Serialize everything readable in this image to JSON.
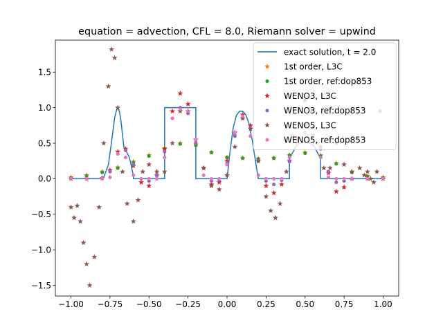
{
  "chart_data": {
    "type": "scatter",
    "title": "equation = advection, CFL = 8.0, Riemann solver = upwind",
    "xlabel": "",
    "ylabel": "",
    "xlim": [
      -1.1,
      1.1
    ],
    "ylim": [
      -1.65,
      1.95
    ],
    "xticks": [
      -1.0,
      -0.75,
      -0.5,
      -0.25,
      0.0,
      0.25,
      0.5,
      0.75,
      1.0
    ],
    "xtick_labels": [
      "−1.00",
      "−0.75",
      "−0.50",
      "−0.25",
      "0.00",
      "0.25",
      "0.50",
      "0.75",
      "1.00"
    ],
    "yticks": [
      -1.5,
      -1.0,
      -0.5,
      0.0,
      0.5,
      1.0,
      1.5
    ],
    "ytick_labels": [
      "−1.5",
      "−1.0",
      "−0.5",
      "0.0",
      "0.5",
      "1.0",
      "1.5"
    ],
    "grid": false,
    "legend_position": "top-right",
    "series": [
      {
        "name": "exact solution, t = 2.0",
        "color": "#1f77b4",
        "marker": "line",
        "x": [
          -1.0,
          -0.82,
          -0.79,
          -0.76,
          -0.74,
          -0.72,
          -0.71,
          -0.7,
          -0.69,
          -0.68,
          -0.67,
          -0.66,
          -0.65,
          -0.64,
          -0.63,
          -0.62,
          -0.61,
          -0.6,
          -0.6,
          -0.6,
          -0.4,
          -0.4,
          -0.4,
          -0.2,
          -0.2,
          -0.2,
          0.0,
          0.02,
          0.04,
          0.06,
          0.08,
          0.1,
          0.12,
          0.14,
          0.16,
          0.18,
          0.2,
          0.2,
          0.4,
          0.4,
          0.44,
          0.48,
          0.52,
          0.56,
          0.6,
          0.6,
          0.8,
          1.0
        ],
        "y": [
          0.0,
          0.0,
          0.02,
          0.2,
          0.52,
          0.86,
          0.95,
          1.0,
          0.95,
          0.82,
          0.62,
          0.43,
          0.4,
          0.36,
          0.32,
          0.25,
          0.14,
          0.05,
          0.0,
          0.0,
          0.0,
          1.0,
          1.0,
          1.0,
          0.0,
          0.0,
          0.0,
          0.4,
          0.72,
          0.89,
          0.95,
          0.95,
          0.9,
          0.78,
          0.56,
          0.28,
          0.0,
          0.0,
          0.0,
          0.28,
          0.45,
          0.52,
          0.52,
          0.45,
          0.28,
          0.0,
          0.0,
          0.0
        ]
      },
      {
        "name": "1st order, L3C",
        "color": "#ff7f0e",
        "marker": "star",
        "x": [
          -1.0,
          -0.9,
          -0.8,
          -0.7,
          -0.6,
          -0.5,
          -0.4,
          -0.3,
          -0.2,
          -0.1,
          0.0,
          0.1,
          0.2,
          0.3,
          0.4,
          0.5,
          0.6,
          0.7,
          0.8,
          0.9,
          1.0
        ],
        "y": [
          0.02,
          0.05,
          0.1,
          0.16,
          0.24,
          0.33,
          0.43,
          0.5,
          0.48,
          0.37,
          0.3,
          0.29,
          0.28,
          0.29,
          0.33,
          0.37,
          0.33,
          0.22,
          0.1,
          0.04,
          0.02
        ]
      },
      {
        "name": "1st order, ref:dop853",
        "color": "#2ca02c",
        "marker": "dot",
        "x": [
          -1.0,
          -0.9,
          -0.8,
          -0.7,
          -0.6,
          -0.5,
          -0.4,
          -0.3,
          -0.2,
          -0.1,
          0.0,
          0.1,
          0.2,
          0.3,
          0.4,
          0.5,
          0.6,
          0.7,
          0.8,
          0.9,
          1.0
        ],
        "y": [
          0.01,
          0.04,
          0.09,
          0.15,
          0.23,
          0.32,
          0.42,
          0.49,
          0.47,
          0.37,
          0.3,
          0.29,
          0.28,
          0.29,
          0.33,
          0.36,
          0.32,
          0.21,
          0.09,
          0.03,
          0.01
        ]
      },
      {
        "name": "WENO3, L3C",
        "color": "#d62728",
        "marker": "star",
        "x": [
          -1.0,
          -0.9,
          -0.8,
          -0.75,
          -0.7,
          -0.65,
          -0.6,
          -0.55,
          -0.5,
          -0.45,
          -0.4,
          -0.35,
          -0.3,
          -0.25,
          -0.2,
          -0.15,
          -0.1,
          -0.05,
          0.0,
          0.05,
          0.1,
          0.15,
          0.2,
          0.25,
          0.3,
          0.35,
          0.4,
          0.45,
          0.5,
          0.55,
          0.6,
          0.65,
          0.7,
          0.75,
          0.8,
          0.9,
          1.0
        ],
        "y": [
          0.0,
          0.0,
          0.01,
          0.12,
          0.38,
          0.42,
          0.18,
          -0.05,
          -0.1,
          0.05,
          0.42,
          0.95,
          1.2,
          1.05,
          0.55,
          0.15,
          -0.08,
          -0.05,
          0.25,
          0.65,
          0.9,
          0.75,
          0.25,
          -0.1,
          -0.2,
          -0.08,
          0.25,
          0.55,
          0.75,
          0.72,
          0.45,
          0.08,
          -0.18,
          -0.12,
          0.0,
          0.0,
          0.0
        ]
      },
      {
        "name": "WENO3, ref:dop853",
        "color": "#9467bd",
        "marker": "dot",
        "x": [
          -1.0,
          -0.9,
          -0.8,
          -0.75,
          -0.7,
          -0.65,
          -0.6,
          -0.55,
          -0.5,
          -0.45,
          -0.4,
          -0.35,
          -0.3,
          -0.25,
          -0.2,
          -0.15,
          -0.1,
          -0.05,
          0.0,
          0.05,
          0.1,
          0.15,
          0.2,
          0.25,
          0.3,
          0.35,
          0.4,
          0.45,
          0.5,
          0.55,
          0.6,
          0.65,
          0.7,
          0.75,
          0.8,
          0.9,
          1.0
        ],
        "y": [
          0.0,
          0.0,
          0.01,
          0.1,
          0.35,
          0.4,
          0.2,
          0.0,
          -0.03,
          0.05,
          0.38,
          0.85,
          1.0,
          0.92,
          0.5,
          0.15,
          -0.03,
          -0.02,
          0.22,
          0.6,
          0.85,
          0.72,
          0.25,
          -0.03,
          -0.08,
          -0.02,
          0.25,
          0.5,
          0.65,
          0.62,
          0.42,
          0.1,
          -0.05,
          -0.03,
          0.0,
          0.0,
          0.0
        ]
      },
      {
        "name": "WENO5, L3C",
        "color": "#8c564b",
        "marker": "star",
        "x": [
          -1.0,
          -0.98,
          -0.96,
          -0.94,
          -0.92,
          -0.9,
          -0.88,
          -0.85,
          -0.82,
          -0.79,
          -0.76,
          -0.74,
          -0.72,
          -0.7,
          -0.67,
          -0.64,
          -0.6,
          -0.57,
          -0.54,
          -0.5,
          -0.45,
          -0.4,
          -0.35,
          -0.3,
          -0.25,
          -0.2,
          -0.15,
          -0.1,
          -0.05,
          0.0,
          0.05,
          0.1,
          0.15,
          0.2,
          0.25,
          0.28,
          0.31,
          0.34,
          0.38,
          0.42,
          0.46,
          0.5,
          0.54,
          0.58,
          0.62,
          0.66,
          0.7,
          0.75,
          0.8,
          0.85,
          0.88,
          0.9,
          0.92,
          0.94,
          0.96,
          0.98,
          1.0
        ],
        "y": [
          -0.4,
          -0.55,
          -0.38,
          -0.6,
          -0.9,
          -1.2,
          -1.5,
          -1.1,
          -0.4,
          0.5,
          1.3,
          1.82,
          1.7,
          1.0,
          0.1,
          -0.35,
          -0.6,
          -0.3,
          0.1,
          0.2,
          0.1,
          0.1,
          0.5,
          0.95,
          0.95,
          0.55,
          0.15,
          -0.1,
          -0.15,
          0.05,
          0.45,
          0.85,
          0.7,
          0.25,
          -0.25,
          -0.45,
          -0.55,
          -0.35,
          0.1,
          0.6,
          0.95,
          1.1,
          0.95,
          0.5,
          0.15,
          0.15,
          0.5,
          0.2,
          0.1,
          0.15,
          0.05,
          0.1,
          0.0,
          -0.05,
          0.1,
          0.95,
          0.0
        ]
      },
      {
        "name": "WENO5, ref:dop853",
        "color": "#e377c2",
        "marker": "dot",
        "x": [
          -1.0,
          -0.9,
          -0.8,
          -0.75,
          -0.7,
          -0.65,
          -0.6,
          -0.55,
          -0.5,
          -0.45,
          -0.4,
          -0.35,
          -0.3,
          -0.25,
          -0.2,
          -0.15,
          -0.1,
          -0.05,
          0.0,
          0.05,
          0.1,
          0.15,
          0.2,
          0.25,
          0.3,
          0.35,
          0.4,
          0.45,
          0.5,
          0.55,
          0.6,
          0.65,
          0.7,
          0.75,
          0.8,
          0.9,
          1.0
        ],
        "y": [
          0.0,
          0.0,
          0.0,
          0.02,
          0.35,
          0.3,
          0.05,
          0.0,
          0.0,
          0.0,
          0.3,
          0.85,
          0.98,
          0.95,
          0.55,
          0.05,
          0.0,
          0.0,
          0.2,
          0.65,
          0.88,
          0.6,
          0.05,
          0.0,
          0.0,
          0.0,
          0.3,
          0.48,
          0.52,
          0.48,
          0.3,
          0.02,
          0.0,
          0.0,
          0.0,
          0.0,
          0.0
        ]
      }
    ]
  }
}
